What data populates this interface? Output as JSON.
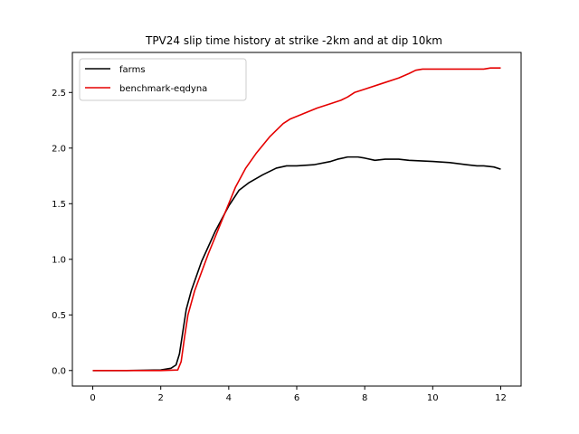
{
  "chart_data": {
    "type": "line",
    "title": "TPV24 slip time history at strike -2km and at dip 10km",
    "xlabel": "",
    "ylabel": "",
    "xlim": [
      -0.6,
      12.6
    ],
    "ylim": [
      -0.14,
      2.86
    ],
    "x_ticks": [
      0,
      2,
      4,
      6,
      8,
      10,
      12
    ],
    "x_tick_labels": [
      "0",
      "2",
      "4",
      "6",
      "8",
      "10",
      "12"
    ],
    "y_ticks": [
      0.0,
      0.5,
      1.0,
      1.5,
      2.0,
      2.5
    ],
    "y_tick_labels": [
      "0.0",
      "0.5",
      "1.0",
      "1.5",
      "2.0",
      "2.5"
    ],
    "grid": false,
    "legend_position": "top-left",
    "series": [
      {
        "name": "farms",
        "color": "#000000",
        "x": [
          0,
          1,
          2,
          2.3,
          2.45,
          2.55,
          2.65,
          2.75,
          2.9,
          3.2,
          3.6,
          4.0,
          4.3,
          4.6,
          5.0,
          5.4,
          5.7,
          6.0,
          6.5,
          7.0,
          7.2,
          7.5,
          7.8,
          8.0,
          8.3,
          8.6,
          9.0,
          9.3,
          10.0,
          10.5,
          11.0,
          11.3,
          11.5,
          11.8,
          12.0
        ],
        "y": [
          0.0,
          0.0,
          0.005,
          0.02,
          0.05,
          0.15,
          0.35,
          0.55,
          0.72,
          0.98,
          1.25,
          1.48,
          1.62,
          1.69,
          1.76,
          1.82,
          1.84,
          1.84,
          1.85,
          1.88,
          1.9,
          1.92,
          1.92,
          1.91,
          1.89,
          1.9,
          1.9,
          1.89,
          1.88,
          1.87,
          1.85,
          1.84,
          1.84,
          1.83,
          1.81
        ]
      },
      {
        "name": "benchmark-eqdyna",
        "color": "#e50000",
        "x": [
          0,
          1,
          2,
          2.5,
          2.6,
          2.7,
          2.8,
          3.0,
          3.4,
          3.8,
          4.2,
          4.5,
          4.8,
          5.2,
          5.6,
          5.8,
          6.2,
          6.6,
          7.0,
          7.3,
          7.5,
          7.7,
          8.0,
          8.5,
          9.0,
          9.3,
          9.5,
          9.7,
          10.0,
          10.5,
          11.0,
          11.5,
          11.7,
          12.0
        ],
        "y": [
          0.0,
          0.0,
          0.0,
          0.005,
          0.08,
          0.3,
          0.5,
          0.72,
          1.05,
          1.35,
          1.65,
          1.82,
          1.95,
          2.1,
          2.22,
          2.26,
          2.31,
          2.36,
          2.4,
          2.43,
          2.46,
          2.5,
          2.53,
          2.58,
          2.63,
          2.67,
          2.7,
          2.71,
          2.71,
          2.71,
          2.71,
          2.71,
          2.72,
          2.72
        ]
      }
    ]
  },
  "colors": {
    "axis": "#000000",
    "background": "#ffffff",
    "legend_border": "#cccccc"
  }
}
